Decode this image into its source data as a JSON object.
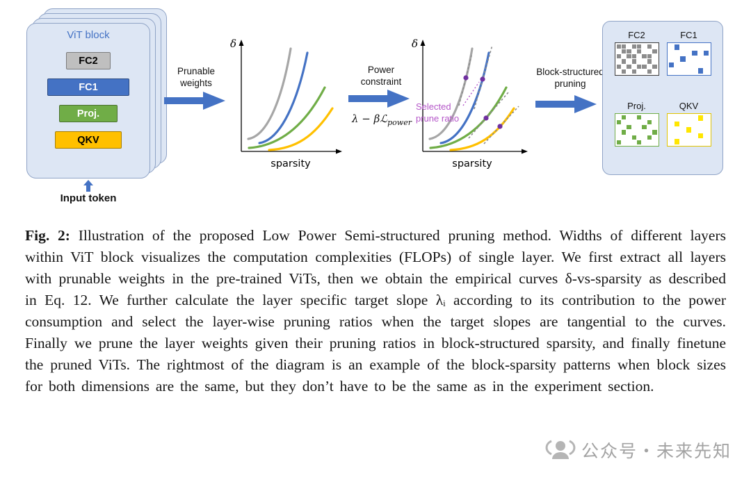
{
  "colors": {
    "blue": "#4472c4",
    "green": "#70ad47",
    "yellow": "#ffc000",
    "gray": "#a6a6a6",
    "purple": "#7030a0",
    "magenta": "#b455c8",
    "tangent": "#8a8a8a"
  },
  "diagram": {
    "vit_block": {
      "title": "ViT block",
      "input_label": "Input token",
      "layers": [
        {
          "label": "FC2",
          "color": "#bfbfbf",
          "text": "#000000",
          "width": 64
        },
        {
          "label": "FC1",
          "color": "#4472c4",
          "text": "#ffffff",
          "width": 118
        },
        {
          "label": "Proj.",
          "color": "#70ad47",
          "text": "#ffffff",
          "width": 84
        },
        {
          "label": "QKV",
          "color": "#ffc000",
          "text": "#000000",
          "width": 96
        }
      ]
    },
    "arrow1_label": "Prunable weights",
    "arrow2_label": "Power constraint",
    "arrow2_formula": "λ − βℒ",
    "arrow2_formula_sub": "power",
    "arrow3_label": "Block-structured pruning",
    "plot1": {
      "ylabel": "δ",
      "xlabel": "sparsity"
    },
    "plot2": {
      "ylabel": "δ",
      "xlabel": "sparsity",
      "annotation": "Selected prune ratio"
    },
    "patterns": [
      {
        "label": "FC2",
        "color": "#8c8c8c",
        "border": "#3a3a3a",
        "cols": 8,
        "rows": 6,
        "cells": [
          [
            0,
            0
          ],
          [
            1,
            0
          ],
          [
            3,
            0
          ],
          [
            4,
            0
          ],
          [
            6,
            0
          ],
          [
            1,
            1
          ],
          [
            2,
            1
          ],
          [
            4,
            1
          ],
          [
            7,
            1
          ],
          [
            0,
            2
          ],
          [
            2,
            2
          ],
          [
            3,
            2
          ],
          [
            5,
            2
          ],
          [
            6,
            2
          ],
          [
            1,
            3
          ],
          [
            3,
            3
          ],
          [
            6,
            3
          ],
          [
            0,
            4
          ],
          [
            2,
            4
          ],
          [
            4,
            4
          ],
          [
            5,
            4
          ],
          [
            7,
            4
          ],
          [
            1,
            5
          ],
          [
            3,
            5
          ],
          [
            6,
            5
          ]
        ]
      },
      {
        "label": "FC1",
        "color": "#4472c4",
        "border": "#4472c4",
        "cols": 7,
        "rows": 5,
        "cells": [
          [
            1,
            0
          ],
          [
            4,
            1
          ],
          [
            6,
            1
          ],
          [
            2,
            2
          ],
          [
            0,
            3
          ],
          [
            5,
            4
          ]
        ]
      },
      {
        "label": "Proj.",
        "color": "#70ad47",
        "border": "#70ad47",
        "cols": 8,
        "rows": 6,
        "cells": [
          [
            1,
            0
          ],
          [
            4,
            0
          ],
          [
            0,
            1
          ],
          [
            6,
            1
          ],
          [
            2,
            2
          ],
          [
            5,
            2
          ],
          [
            1,
            3
          ],
          [
            7,
            3
          ],
          [
            3,
            4
          ],
          [
            6,
            4
          ],
          [
            0,
            5
          ],
          [
            4,
            5
          ]
        ]
      },
      {
        "label": "QKV",
        "color": "#ffe600",
        "border": "#e0c400",
        "cols": 7,
        "rows": 5,
        "cells": [
          [
            5,
            0
          ],
          [
            1,
            1
          ],
          [
            3,
            2
          ],
          [
            5,
            3
          ],
          [
            1,
            4
          ]
        ]
      }
    ]
  },
  "caption": {
    "fig_label": "Fig. 2:",
    "text": "Illustration of the proposed Low Power Semi-structured pruning method. Widths of different layers within ViT block visualizes the computation complexities (FLOPs) of single layer. We first extract all layers with prunable weights in the pre-trained ViTs, then we obtain the empirical curves δ-vs-sparsity as described in Eq. 12. We further calculate the layer specific target slope λᵢ according to its contribution to the power consumption and select the layer-wise pruning ratios when the target slopes are tangential to the curves. Finally we prune the layer weights given their pruning ratios in block-structured sparsity, and finally finetune the pruned ViTs. The rightmost of the diagram is an example of the block-sparsity patterns when block sizes for both dimensions are the same, but they don’t have to be the same as in the experiment section."
  },
  "watermark": {
    "text": "公众号・未来先知"
  }
}
